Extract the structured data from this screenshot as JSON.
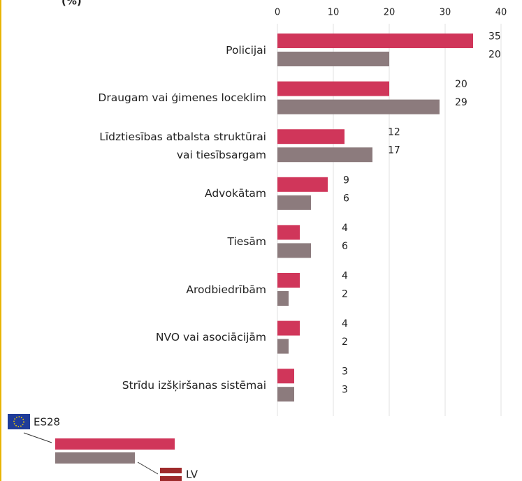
{
  "chart_data": {
    "type": "bar",
    "orientation": "horizontal",
    "title": "(%)",
    "categories": [
      "Policijai",
      "Draugam vai ģimenes loceklim",
      "Līdztiesības atbalsta struktūrai\nvai tiesībsargam",
      "Advokātam",
      "Tiesām",
      "Arodbiedrībām",
      "NVO vai asociācijām",
      "Strīdu izšķiršanas sistēmai"
    ],
    "series": [
      {
        "name": "ES28",
        "color": "#d0365a",
        "values": [
          35,
          20,
          12,
          9,
          4,
          4,
          4,
          3
        ]
      },
      {
        "name": "LV",
        "color": "#8c7b7d",
        "values": [
          20,
          29,
          17,
          6,
          6,
          2,
          2,
          3
        ]
      }
    ],
    "xlim": [
      0,
      40
    ],
    "xticks": [
      0,
      10,
      20,
      30,
      40
    ],
    "grid": true
  }
}
